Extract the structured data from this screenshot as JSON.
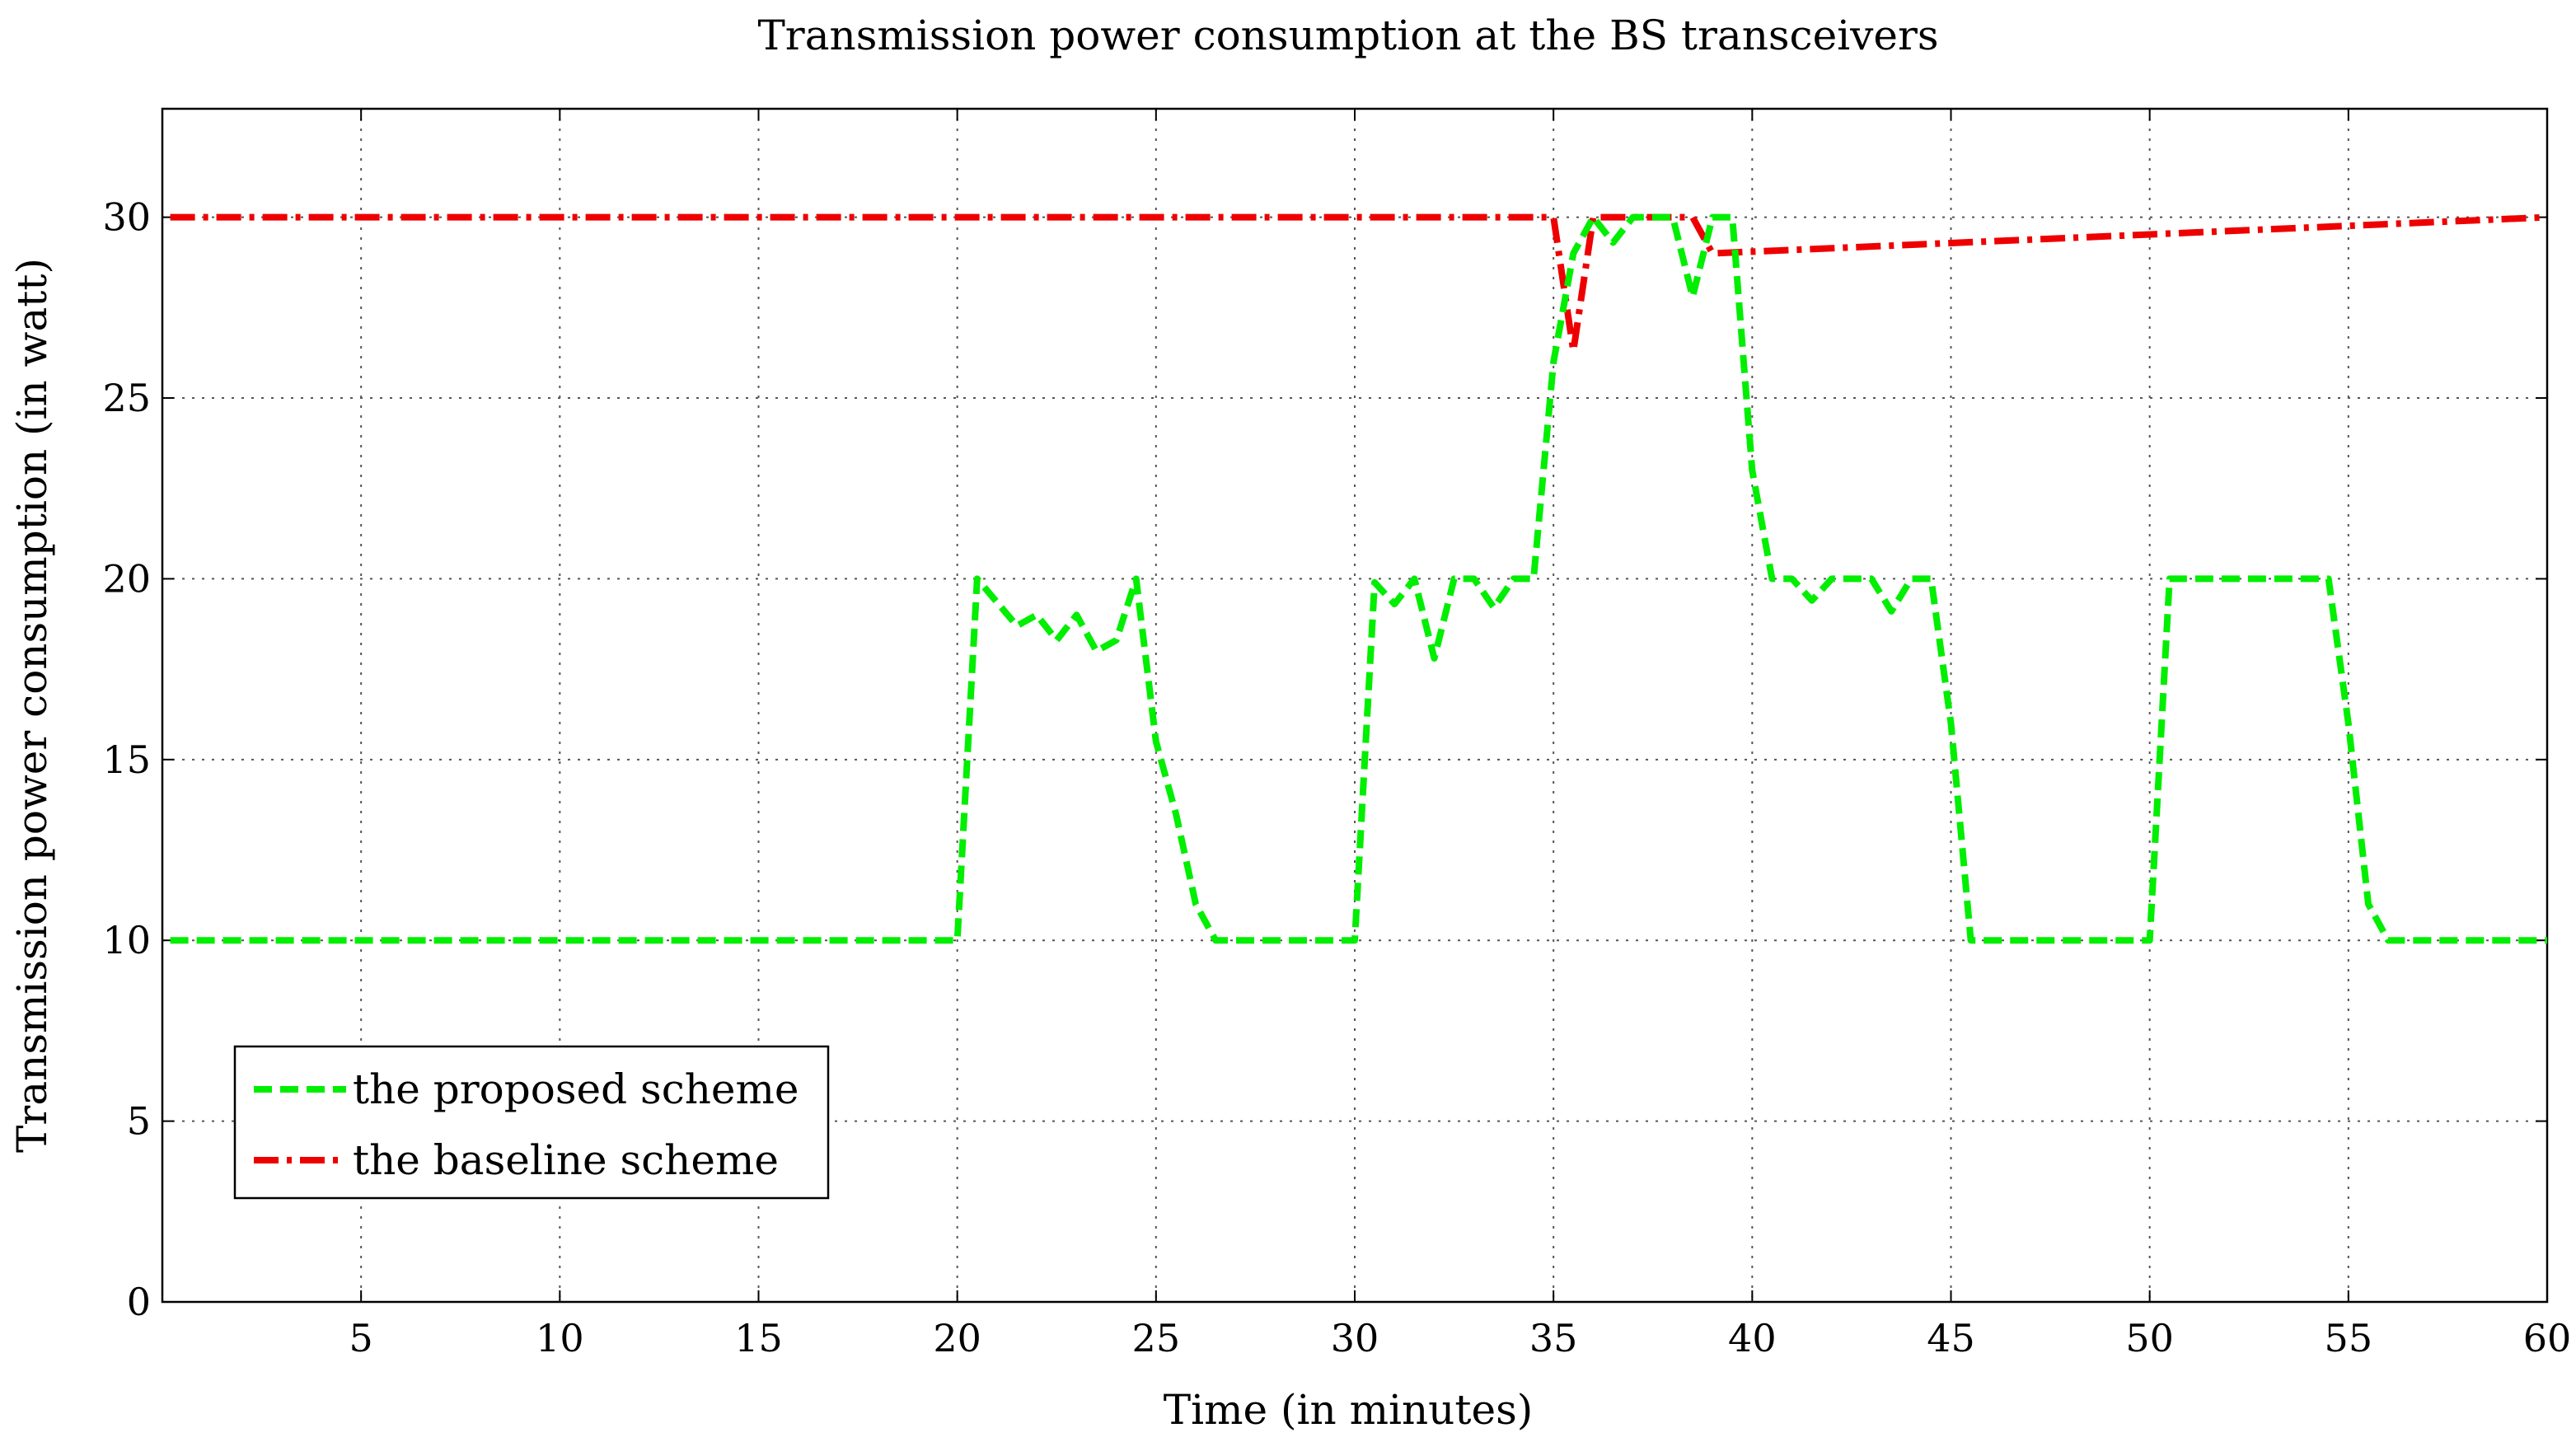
{
  "chart_data": {
    "type": "line",
    "title": "Transmission power consumption at the BS transceivers",
    "xlabel": "Time (in minutes)",
    "ylabel": "Transmission power consumption (in watt)",
    "xlim": [
      0,
      60
    ],
    "ylim": [
      0,
      33
    ],
    "xticks": [
      5,
      10,
      15,
      20,
      25,
      30,
      35,
      40,
      45,
      50,
      55,
      60
    ],
    "yticks": [
      0,
      5,
      10,
      15,
      20,
      25,
      30
    ],
    "grid": true,
    "legend_position": "bottom-left",
    "series": [
      {
        "name": "the proposed scheme",
        "color": "#00ee00",
        "style": "dashed",
        "x": [
          0.2,
          20,
          20.5,
          21.5,
          22,
          22.5,
          23,
          23.5,
          24,
          24.5,
          25,
          25.5,
          26,
          26.5,
          30,
          30.5,
          31,
          31.5,
          32,
          32.5,
          33,
          33.5,
          34,
          34.5,
          35,
          35.5,
          36,
          36.5,
          37,
          37.5,
          38,
          38.5,
          39,
          39.5,
          40,
          40.5,
          41,
          41.5,
          42,
          42.5,
          43,
          43.5,
          44,
          44.5,
          45,
          45.5,
          50,
          50.5,
          51,
          54.5,
          55,
          55.5,
          56,
          56.5,
          60
        ],
        "y": [
          10,
          10,
          20,
          18.7,
          19,
          18.3,
          19,
          18,
          18.3,
          20,
          15.5,
          13.5,
          11,
          10,
          10,
          19.9,
          19.3,
          20,
          17.8,
          20,
          20,
          19.2,
          20,
          20,
          26,
          29,
          30,
          29.3,
          30,
          30,
          30,
          27.8,
          30,
          30,
          23,
          20,
          20,
          19.4,
          20,
          20,
          20,
          19.1,
          20,
          20,
          16,
          10,
          10,
          20,
          20,
          20,
          16,
          11,
          10,
          10,
          10
        ]
      },
      {
        "name": "the baseline scheme",
        "color": "#ee0000",
        "style": "dash-dot",
        "x": [
          0.2,
          35,
          35.5,
          36,
          38.5,
          39,
          60
        ],
        "y": [
          30,
          30,
          26.3,
          30,
          30,
          29,
          30
        ]
      }
    ]
  }
}
